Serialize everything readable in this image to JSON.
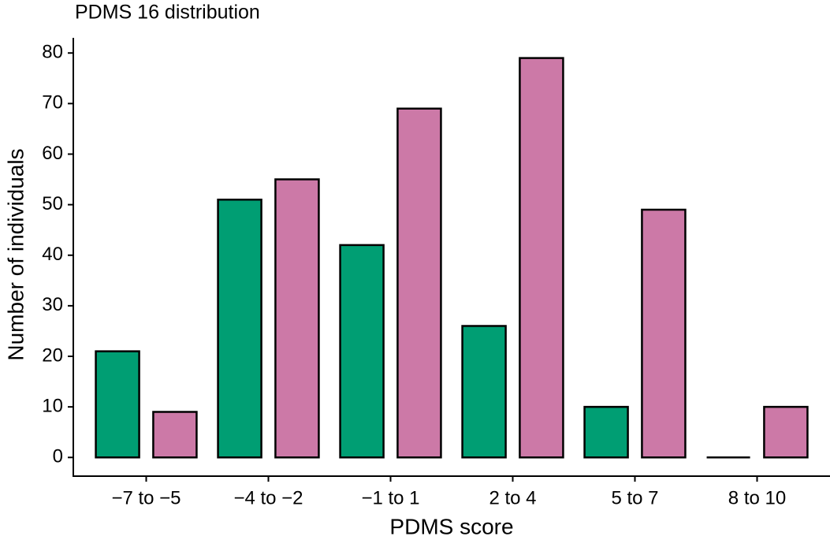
{
  "chart_data": {
    "type": "bar",
    "title": "PDMS 16 distribution",
    "x_label": "PDMS score",
    "y_label": "Number of individuals",
    "categories": [
      "−7 to −5",
      "−4 to −2",
      "−1 to 1",
      "2 to 4",
      "5 to 7",
      "8 to 10"
    ],
    "series": [
      {
        "color": "#009e73",
        "values": [
          21,
          51,
          42,
          26,
          10,
          0
        ]
      },
      {
        "color": "#cc79a7",
        "values": [
          9,
          55,
          69,
          79,
          49,
          10
        ]
      }
    ],
    "ylim": [
      -3.7,
      83
    ],
    "yticks": [
      0,
      10,
      20,
      30,
      40,
      50,
      60,
      70,
      80
    ],
    "grid": false
  }
}
